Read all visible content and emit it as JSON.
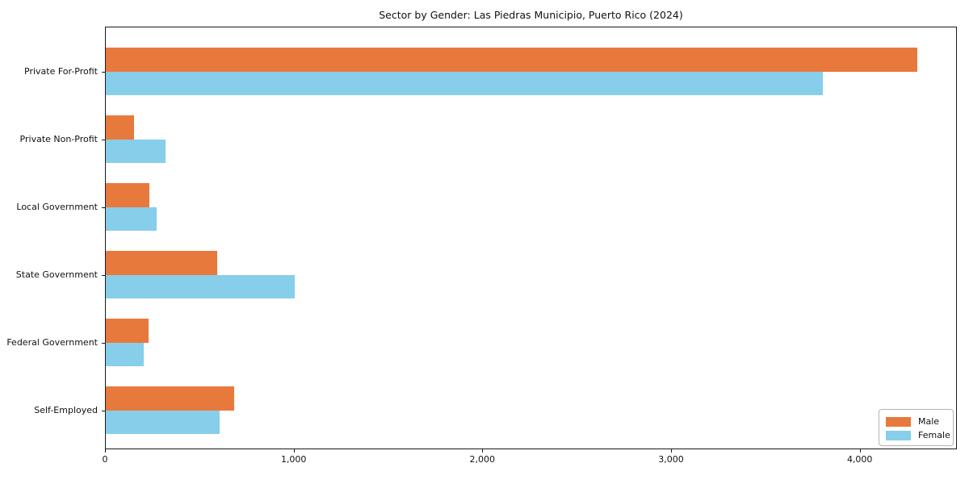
{
  "chart_data": {
    "type": "bar",
    "orientation": "horizontal",
    "title": "Sector by Gender: Las Piedras Municipio, Puerto Rico (2024)",
    "categories": [
      "Private For-Profit",
      "Private Non-Profit",
      "Local Government",
      "State Government",
      "Federal Government",
      "Self-Employed"
    ],
    "series": [
      {
        "name": "Male",
        "color": "#e8793d",
        "values": [
          4300,
          150,
          230,
          590,
          225,
          680
        ]
      },
      {
        "name": "Female",
        "color": "#87ceeb",
        "values": [
          3800,
          315,
          270,
          1000,
          200,
          605
        ]
      }
    ],
    "xlabel": "",
    "ylabel": "",
    "xlim": [
      0,
      4515
    ],
    "xticks": [
      0,
      1000,
      2000,
      3000,
      4000
    ],
    "xtick_labels": [
      "0",
      "1,000",
      "2,000",
      "3,000",
      "4,000"
    ],
    "grid": false,
    "legend": {
      "position": "lower right"
    }
  },
  "colors": {
    "male": "#e8793d",
    "female": "#87ceeb",
    "spine": "#1a1a1a",
    "background": "#ffffff"
  }
}
